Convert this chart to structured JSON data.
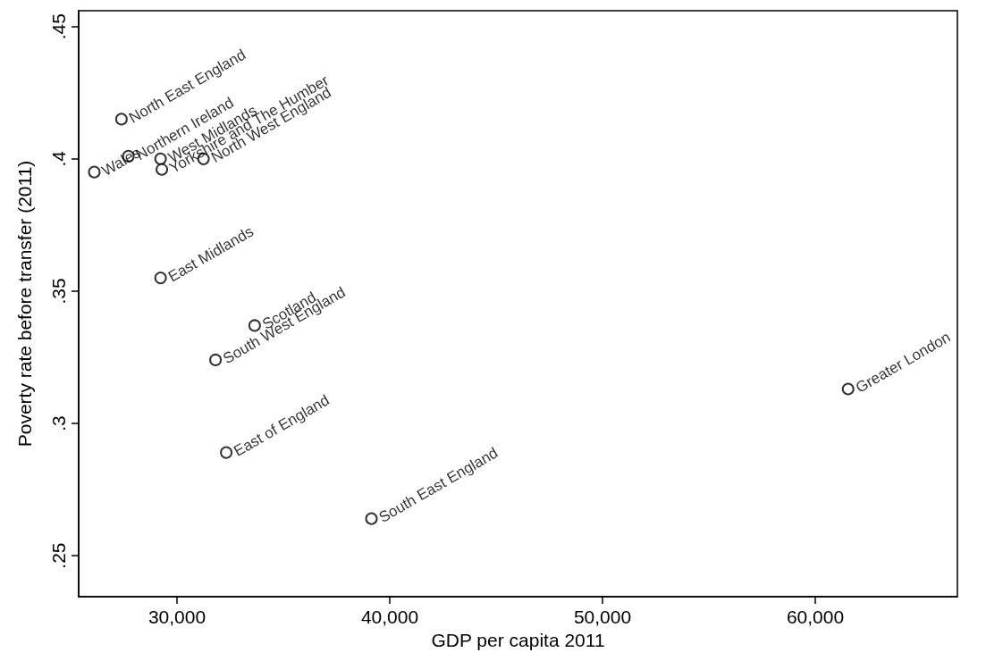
{
  "chart_data": {
    "type": "scatter",
    "xlabel": "GDP per capita 2011",
    "ylabel": "Poverty rate before transfer (2011)",
    "x": [
      27389,
      27715,
      26113,
      29228,
      29288,
      31246,
      29228,
      33650,
      31810,
      32315,
      61543,
      39139
    ],
    "series": [
      {
        "color": "#000000",
        "values": [
          0.415,
          0.401,
          0.395,
          0.4,
          0.396,
          0.4,
          0.355,
          0.337,
          0.324,
          0.289,
          0.313,
          0.264
        ]
      }
    ],
    "annotations": [
      {
        "text": "North East England",
        "x": 27389,
        "y": 0.415
      },
      {
        "text": "Northern Ireland",
        "x": 27715,
        "y": 0.401
      },
      {
        "text": "Wales",
        "x": 26113,
        "y": 0.395
      },
      {
        "text": "West Midlands",
        "x": 29228,
        "y": 0.4
      },
      {
        "text": "Yorkshire and The Humber",
        "x": 29288,
        "y": 0.396
      },
      {
        "text": "North West England",
        "x": 31246,
        "y": 0.4
      },
      {
        "text": "East Midlands",
        "x": 29228,
        "y": 0.355
      },
      {
        "text": "Scotland",
        "x": 33650,
        "y": 0.337
      },
      {
        "text": "South West England",
        "x": 31810,
        "y": 0.324
      },
      {
        "text": "East of England",
        "x": 32315,
        "y": 0.289
      },
      {
        "text": "Greater London",
        "x": 61543,
        "y": 0.313
      },
      {
        "text": "South East England",
        "x": 39139,
        "y": 0.264
      }
    ],
    "xlim": [
      25378,
      66680
    ],
    "xticks": [
      {
        "value": 30000,
        "label": "30,000"
      },
      {
        "value": 40000,
        "label": "40,000"
      },
      {
        "value": 50000,
        "label": "50,000"
      },
      {
        "value": 60000,
        "label": "60,000"
      }
    ],
    "ylim": [
      0.2345,
      0.456
    ],
    "yticks": [
      {
        "value": 0.25,
        "label": ".25"
      },
      {
        "value": 0.3,
        "label": ".3"
      },
      {
        "value": 0.35,
        "label": ".35"
      },
      {
        "value": 0.4,
        "label": ".4"
      },
      {
        "value": 0.45,
        "label": ".45"
      }
    ],
    "grid": false,
    "marker": "circle"
  }
}
